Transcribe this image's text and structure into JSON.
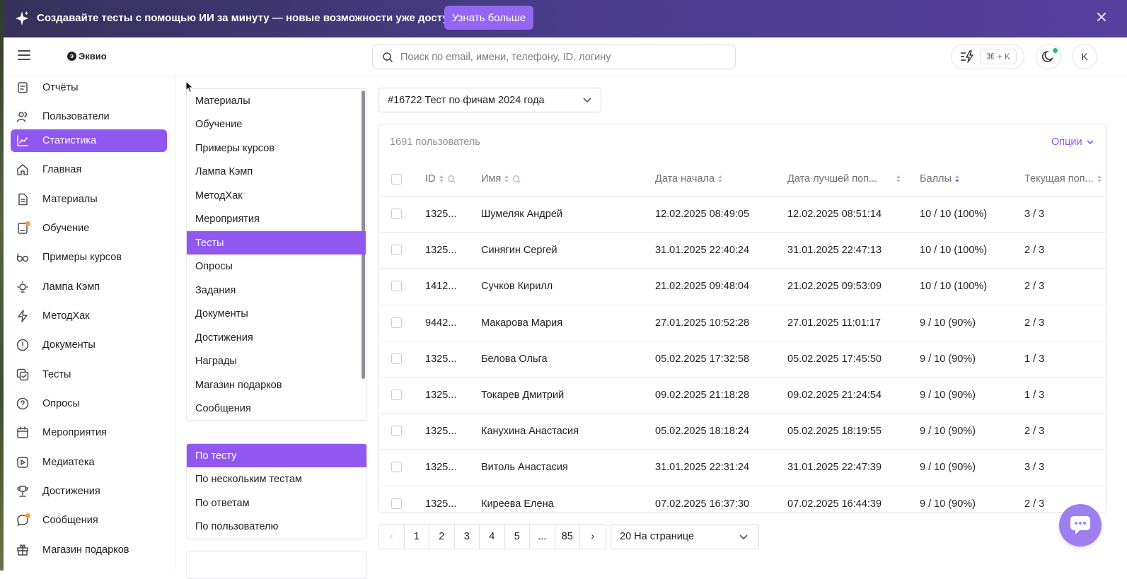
{
  "banner": {
    "text": "Создавайте тесты с помощью ИИ за минуту — новые возможности уже доступны!",
    "button": "Узнать больше",
    "close": "✕"
  },
  "header": {
    "logo": "Эквио",
    "search_placeholder": "Поиск по email, имени, телефону, ID, логину",
    "shortcut": "⌘ + K",
    "avatar": "K"
  },
  "sidebar": {
    "items": [
      {
        "label": "Отчёты",
        "icon": "report-icon"
      },
      {
        "label": "Пользователи",
        "icon": "users-icon"
      },
      {
        "label": "Статистика",
        "icon": "chart-icon",
        "active": true
      },
      {
        "label": "Главная",
        "icon": "home-icon"
      },
      {
        "label": "Материалы",
        "icon": "document-icon"
      },
      {
        "label": "Обучение",
        "icon": "learning-icon",
        "badge": true
      },
      {
        "label": "Примеры курсов",
        "icon": "glasses-icon"
      },
      {
        "label": "Лампа Кэмп",
        "icon": "lamp-icon"
      },
      {
        "label": "МетодХак",
        "icon": "lightning-icon"
      },
      {
        "label": "Документы",
        "icon": "alert-circle-icon"
      },
      {
        "label": "Тесты",
        "icon": "tests-icon"
      },
      {
        "label": "Опросы",
        "icon": "question-icon"
      },
      {
        "label": "Мероприятия",
        "icon": "calendar-icon"
      },
      {
        "label": "Медиатека",
        "icon": "play-icon"
      },
      {
        "label": "Достижения",
        "icon": "trophy-icon"
      },
      {
        "label": "Сообщения",
        "icon": "chat-icon",
        "badge": true
      },
      {
        "label": "Магазин подарков",
        "icon": "gift-icon"
      }
    ]
  },
  "categories": {
    "items": [
      "Материалы",
      "Обучение",
      "Примеры курсов",
      "Лампа Кэмп",
      "МетодХак",
      "Мероприятия",
      "Тесты",
      "Опросы",
      "Задания",
      "Документы",
      "Достижения",
      "Награды",
      "Магазин подарков",
      "Сообщения"
    ],
    "active_index": 6
  },
  "report_types": {
    "items": [
      "По тесту",
      "По нескольким тестам",
      "По ответам",
      "По пользователю"
    ],
    "active_index": 0
  },
  "test_select": "#16722 Тест по фичам 2024 года",
  "table": {
    "count": "1691 пользователь",
    "options": "Опции",
    "columns": [
      "ID",
      "Имя",
      "Дата начала",
      "Дата лучшей поп...",
      "Баллы",
      "Текущая поп..."
    ],
    "rows": [
      [
        "1325...",
        "Шумеляк Андрей",
        "12.02.2025 08:49:05",
        "12.02.2025 08:51:14",
        "10 / 10 (100%)",
        "3 / 3"
      ],
      [
        "1325...",
        "Синягин Сергей",
        "31.01.2025 22:40:24",
        "31.01.2025 22:47:13",
        "10 / 10 (100%)",
        "2 / 3"
      ],
      [
        "1412...",
        "Сучков Кирилл",
        "21.02.2025 09:48:04",
        "21.02.2025 09:53:09",
        "10 / 10 (100%)",
        "2 / 3"
      ],
      [
        "9442...",
        "Макарова Мария",
        "27.01.2025 10:52:28",
        "27.01.2025 11:01:17",
        "9 / 10 (90%)",
        "2 / 3"
      ],
      [
        "1325...",
        "Белова Ольга",
        "05.02.2025 17:32:58",
        "05.02.2025 17:45:50",
        "9 / 10 (90%)",
        "1 / 3"
      ],
      [
        "1325...",
        "Токарев Дмитрий",
        "09.02.2025 21:18:28",
        "09.02.2025 21:24:54",
        "9 / 10 (90%)",
        "1 / 3"
      ],
      [
        "1325...",
        "Канухина Анастасия",
        "05.02.2025 18:18:24",
        "05.02.2025 18:19:55",
        "9 / 10 (90%)",
        "2 / 3"
      ],
      [
        "1325...",
        "Витоль Анастасия",
        "31.01.2025 22:31:24",
        "31.01.2025 22:47:39",
        "9 / 10 (90%)",
        "3 / 3"
      ],
      [
        "1325...",
        "Киреева Елена",
        "07.02.2025 16:37:30",
        "07.02.2025 16:44:39",
        "9 / 10 (90%)",
        "2 / 3"
      ]
    ]
  },
  "pagination": {
    "prev": "‹",
    "pages": [
      "1",
      "2",
      "3",
      "4",
      "5",
      "...",
      "85"
    ],
    "next": "›",
    "per_page": "20 На странице"
  },
  "colors": {
    "accent": "#9158f1",
    "banner_button": "#9466f2",
    "online": "#28c76f",
    "badge": "#f59e3b"
  }
}
